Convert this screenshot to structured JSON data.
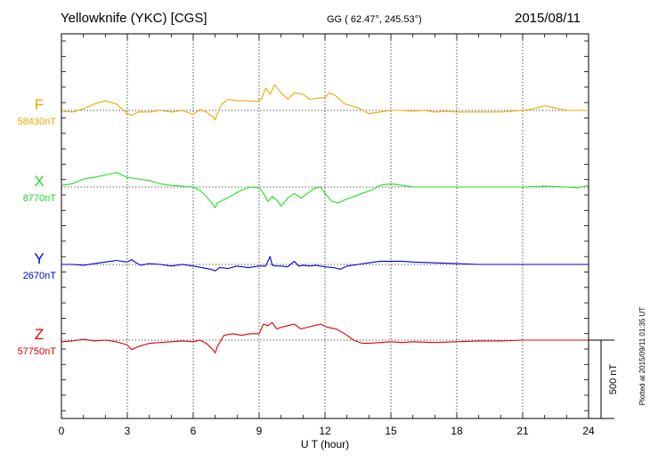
{
  "header": {
    "station": "Yellowknife (YKC)  [CGS]",
    "coords": "GG ( 62.47°, 245.53°)",
    "date": "2015/08/11"
  },
  "plotted_note": "Plotted at 2015/09/11 01:35 UT",
  "scale_label": "500 nT",
  "colors": {
    "F": "#f0a800",
    "X": "#20e020",
    "Y": "#0000dd",
    "Z": "#e00000"
  },
  "chart_data": {
    "type": "line",
    "title": "Yellowknife (YKC)  [CGS]",
    "xlabel": "U T (hour)",
    "ylabel": "",
    "xlim": [
      0,
      24
    ],
    "xticks": [
      0,
      3,
      6,
      9,
      12,
      15,
      18,
      21,
      24
    ],
    "grid": true,
    "scale_bar_nT": 500,
    "series": [
      {
        "name": "F",
        "baseline_label": "58430nT",
        "baseline_nT": 58430,
        "x": [
          0,
          0.5,
          1,
          1.5,
          2,
          2.5,
          3,
          3.2,
          3.5,
          4,
          4.5,
          5,
          5.5,
          6,
          6.3,
          6.6,
          6.9,
          7.0,
          7.1,
          7.3,
          7.6,
          8,
          8.5,
          8.9,
          9.1,
          9.3,
          9.5,
          9.7,
          10,
          10.3,
          10.6,
          11,
          11.3,
          11.6,
          12,
          12.2,
          12.5,
          12.9,
          13.2,
          13.6,
          14,
          14.5,
          15,
          15.5,
          16,
          16.5,
          17,
          17.5,
          18,
          19,
          20,
          21,
          21.5,
          22,
          22.5,
          23,
          23.5,
          24
        ],
        "values": [
          -5,
          -10,
          10,
          40,
          60,
          40,
          -20,
          -30,
          -10,
          -10,
          0,
          -10,
          0,
          -25,
          5,
          -10,
          -40,
          -60,
          -20,
          40,
          70,
          60,
          60,
          55,
          70,
          140,
          100,
          160,
          110,
          70,
          110,
          100,
          70,
          75,
          80,
          110,
          90,
          40,
          30,
          10,
          -20,
          -10,
          0,
          0,
          -5,
          0,
          -10,
          -5,
          -10,
          -10,
          -10,
          0,
          10,
          30,
          15,
          0,
          0,
          0
        ]
      },
      {
        "name": "X",
        "baseline_label": "8770nT",
        "baseline_nT": 8770,
        "x": [
          0,
          0.5,
          1,
          1.5,
          2,
          2.5,
          3,
          3.5,
          4,
          4.5,
          5,
          5.5,
          6,
          6.3,
          6.6,
          6.9,
          7.0,
          7.1,
          7.4,
          7.8,
          8.2,
          8.6,
          9.0,
          9.2,
          9.4,
          9.6,
          9.8,
          10,
          10.3,
          10.6,
          10.9,
          11.2,
          11.5,
          11.8,
          12.0,
          12.3,
          12.6,
          12.9,
          13.3,
          13.7,
          14.1,
          14.5,
          15,
          15.5,
          16,
          17,
          18,
          19,
          20,
          21,
          22,
          23,
          23.5,
          24
        ],
        "values": [
          10,
          20,
          50,
          60,
          75,
          90,
          60,
          50,
          40,
          20,
          10,
          5,
          0,
          -20,
          -60,
          -110,
          -130,
          -100,
          -80,
          -50,
          -20,
          0,
          -5,
          -40,
          -90,
          -60,
          -80,
          -120,
          -70,
          -40,
          -70,
          -40,
          -10,
          0,
          -40,
          -90,
          -100,
          -80,
          -60,
          -40,
          -20,
          10,
          20,
          10,
          0,
          0,
          0,
          0,
          0,
          0,
          5,
          0,
          -5,
          10
        ]
      },
      {
        "name": "Y",
        "baseline_label": "2670nT",
        "baseline_nT": 2670,
        "x": [
          0,
          0.5,
          1,
          1.5,
          2,
          2.5,
          3,
          3.2,
          3.4,
          3.6,
          4,
          4.5,
          5,
          5.5,
          6,
          6.4,
          6.8,
          7.0,
          7.2,
          7.6,
          8,
          8.5,
          9,
          9.3,
          9.5,
          9.6,
          9.8,
          10,
          10.3,
          10.6,
          10.8,
          11,
          11.3,
          11.6,
          12,
          12.4,
          12.7,
          13,
          13.5,
          14,
          14.5,
          15,
          15.5,
          16,
          17,
          18,
          19,
          20,
          21,
          22,
          23,
          24
        ],
        "values": [
          0,
          0,
          -5,
          5,
          15,
          25,
          15,
          30,
          10,
          -5,
          5,
          0,
          -10,
          0,
          -10,
          -20,
          -30,
          -40,
          -20,
          -25,
          -10,
          -20,
          -10,
          -10,
          50,
          -5,
          -10,
          -10,
          -15,
          20,
          -10,
          -5,
          -10,
          -5,
          -15,
          -20,
          -30,
          -10,
          0,
          10,
          20,
          20,
          20,
          15,
          10,
          5,
          0,
          0,
          0,
          0,
          0,
          0
        ]
      },
      {
        "name": "Z",
        "baseline_label": "57750nT",
        "baseline_nT": 57750,
        "x": [
          0,
          0.5,
          1,
          1.5,
          2,
          2.5,
          3,
          3.2,
          3.5,
          4,
          4.5,
          5,
          5.5,
          6,
          6.3,
          6.6,
          6.9,
          7.0,
          7.1,
          7.4,
          7.8,
          8.2,
          8.6,
          9,
          9.2,
          9.4,
          9.6,
          9.8,
          10,
          10.3,
          10.6,
          10.9,
          11.2,
          11.5,
          11.8,
          12.1,
          12.5,
          12.9,
          13.3,
          13.7,
          14,
          14.5,
          15,
          15.5,
          16,
          17,
          18,
          19,
          20,
          21,
          22,
          23,
          24
        ],
        "values": [
          -10,
          -5,
          5,
          -5,
          0,
          -10,
          -30,
          -60,
          -40,
          -20,
          -15,
          -10,
          -5,
          -10,
          0,
          -20,
          -60,
          -80,
          -40,
          30,
          40,
          30,
          40,
          40,
          100,
          90,
          110,
          70,
          80,
          90,
          100,
          70,
          80,
          90,
          100,
          80,
          70,
          40,
          0,
          -20,
          -20,
          -15,
          -10,
          -15,
          -10,
          -15,
          -10,
          -5,
          -5,
          0,
          0,
          0,
          0
        ]
      }
    ]
  }
}
